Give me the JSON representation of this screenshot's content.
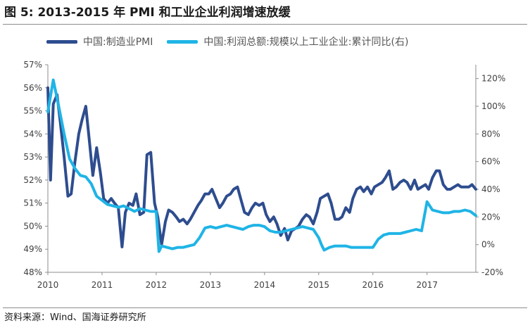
{
  "figure_title": "图 5:  2013-2015 年 PMI 和工业企业利润增速放缓",
  "source": "资料来源：Wind、国海证券研究所",
  "chart_data": {
    "type": "line",
    "title": "",
    "xlabel": "",
    "ylabel": "",
    "legend_position": "top",
    "grid": false,
    "x_range": [
      2010.0,
      2017.9
    ],
    "x_ticks": [
      "2010",
      "2011",
      "2012",
      "2013",
      "2014",
      "2015",
      "2016",
      "2017"
    ],
    "y_left": {
      "range": [
        48,
        57
      ],
      "unit": "%",
      "ticks": [
        "48%",
        "49%",
        "50%",
        "51%",
        "52%",
        "53%",
        "54%",
        "55%",
        "56%",
        "57%"
      ]
    },
    "y_right": {
      "range": [
        -20,
        130
      ],
      "unit": "%",
      "ticks": [
        "-20%",
        "0%",
        "20%",
        "40%",
        "60%",
        "80%",
        "100%",
        "120%"
      ]
    },
    "series": [
      {
        "name": "中国:制造业PMI",
        "axis": "left",
        "color": "#2e4d8f",
        "x": [
          2010.0,
          2010.05,
          2010.1,
          2010.17,
          2010.23,
          2010.3,
          2010.37,
          2010.43,
          2010.5,
          2010.57,
          2010.63,
          2010.7,
          2010.77,
          2010.83,
          2010.9,
          2010.97,
          2011.03,
          2011.1,
          2011.17,
          2011.23,
          2011.3,
          2011.37,
          2011.43,
          2011.5,
          2011.57,
          2011.63,
          2011.7,
          2011.77,
          2011.83,
          2011.9,
          2011.97,
          2012.03,
          2012.1,
          2012.17,
          2012.23,
          2012.3,
          2012.37,
          2012.43,
          2012.5,
          2012.57,
          2012.63,
          2012.7,
          2012.77,
          2012.83,
          2012.9,
          2012.97,
          2013.03,
          2013.1,
          2013.17,
          2013.23,
          2013.3,
          2013.37,
          2013.43,
          2013.5,
          2013.57,
          2013.63,
          2013.7,
          2013.77,
          2013.83,
          2013.9,
          2013.97,
          2014.03,
          2014.1,
          2014.17,
          2014.23,
          2014.3,
          2014.37,
          2014.43,
          2014.5,
          2014.57,
          2014.63,
          2014.7,
          2014.77,
          2014.83,
          2014.9,
          2014.97,
          2015.03,
          2015.1,
          2015.17,
          2015.23,
          2015.3,
          2015.37,
          2015.43,
          2015.5,
          2015.57,
          2015.63,
          2015.7,
          2015.77,
          2015.83,
          2015.9,
          2015.97,
          2016.03,
          2016.1,
          2016.17,
          2016.23,
          2016.3,
          2016.37,
          2016.43,
          2016.5,
          2016.57,
          2016.63,
          2016.7,
          2016.77,
          2016.83,
          2016.9,
          2016.97,
          2017.03,
          2017.1,
          2017.17,
          2017.23,
          2017.3,
          2017.37,
          2017.43,
          2017.5,
          2017.57,
          2017.63,
          2017.7,
          2017.77,
          2017.83,
          2017.9
        ],
        "values": [
          56.0,
          52.0,
          55.3,
          55.7,
          54.5,
          53.0,
          51.3,
          51.4,
          52.8,
          54.0,
          54.6,
          55.2,
          53.6,
          52.2,
          53.4,
          52.3,
          51.2,
          51.0,
          51.2,
          51.0,
          50.8,
          49.1,
          50.6,
          51.0,
          50.9,
          51.4,
          50.5,
          50.6,
          53.1,
          53.2,
          51.0,
          50.4,
          49.2,
          50.2,
          50.7,
          50.6,
          50.4,
          50.2,
          50.3,
          50.1,
          50.3,
          50.6,
          50.9,
          51.1,
          51.4,
          51.4,
          51.6,
          51.2,
          50.8,
          51.0,
          51.3,
          51.4,
          51.6,
          51.7,
          51.1,
          50.6,
          50.5,
          50.8,
          51.0,
          50.9,
          51.0,
          50.5,
          50.2,
          50.4,
          50.1,
          49.6,
          49.9,
          49.4,
          49.8,
          49.9,
          50.0,
          50.3,
          50.5,
          50.4,
          50.1,
          50.6,
          51.2,
          51.3,
          51.4,
          51.0,
          50.3,
          50.3,
          50.4,
          50.8,
          50.6,
          51.2,
          51.6,
          51.7,
          51.5,
          51.7,
          51.4,
          51.7,
          51.8,
          51.9,
          52.1,
          52.4,
          51.6,
          51.7,
          51.9,
          52.0,
          51.9,
          51.6,
          52.0,
          51.6,
          51.7,
          51.8,
          51.6,
          52.1,
          52.4,
          52.4,
          51.8,
          51.6,
          51.6,
          51.7,
          51.8,
          51.7,
          51.7,
          51.7,
          51.8,
          51.6
        ]
      },
      {
        "name": "中国:利润总额:规模以上工业企业:累计同比(右)",
        "axis": "right",
        "color": "#1fb4e6",
        "x": [
          2010.0,
          2010.1,
          2010.2,
          2010.3,
          2010.4,
          2010.5,
          2010.6,
          2010.7,
          2010.8,
          2010.9,
          2011.0,
          2011.1,
          2011.2,
          2011.3,
          2011.4,
          2011.5,
          2011.6,
          2011.7,
          2011.8,
          2011.9,
          2012.0,
          2012.05,
          2012.1,
          2012.2,
          2012.3,
          2012.4,
          2012.5,
          2012.6,
          2012.7,
          2012.8,
          2012.9,
          2013.0,
          2013.1,
          2013.2,
          2013.3,
          2013.4,
          2013.5,
          2013.6,
          2013.7,
          2013.8,
          2013.9,
          2014.0,
          2014.1,
          2014.2,
          2014.3,
          2014.4,
          2014.5,
          2014.6,
          2014.7,
          2014.8,
          2014.9,
          2015.0,
          2015.05,
          2015.1,
          2015.2,
          2015.3,
          2015.4,
          2015.5,
          2015.6,
          2015.7,
          2015.8,
          2015.9,
          2016.0,
          2016.1,
          2016.2,
          2016.3,
          2016.4,
          2016.5,
          2016.6,
          2016.7,
          2016.8,
          2016.9,
          2017.0,
          2017.1,
          2017.2,
          2017.3,
          2017.4,
          2017.5,
          2017.6,
          2017.7,
          2017.8,
          2017.9
        ],
        "values": [
          96.0,
          119.0,
          100.0,
          80.0,
          62.0,
          55.0,
          50.0,
          49.0,
          44.0,
          35.0,
          32.0,
          29.0,
          28.0,
          27.0,
          28.0,
          26.0,
          24.0,
          26.0,
          25.0,
          24.0,
          24.0,
          -5.0,
          -1.0,
          -2.0,
          -3.0,
          -2.0,
          -2.0,
          -1.0,
          0.0,
          5.0,
          12.0,
          13.0,
          12.0,
          13.0,
          14.0,
          13.0,
          12.0,
          11.0,
          13.0,
          14.0,
          14.0,
          13.0,
          10.0,
          9.0,
          9.0,
          10.0,
          11.0,
          12.0,
          13.0,
          12.0,
          11.0,
          5.0,
          0.0,
          -4.0,
          -2.0,
          -1.0,
          -1.0,
          -1.0,
          -2.0,
          -2.0,
          -2.0,
          -2.0,
          -2.0,
          4.0,
          7.0,
          8.0,
          8.0,
          8.0,
          9.0,
          10.0,
          11.0,
          10.0,
          31.0,
          25.0,
          24.0,
          23.0,
          23.0,
          24.0,
          24.0,
          25.0,
          24.0,
          21.0
        ]
      }
    ]
  }
}
